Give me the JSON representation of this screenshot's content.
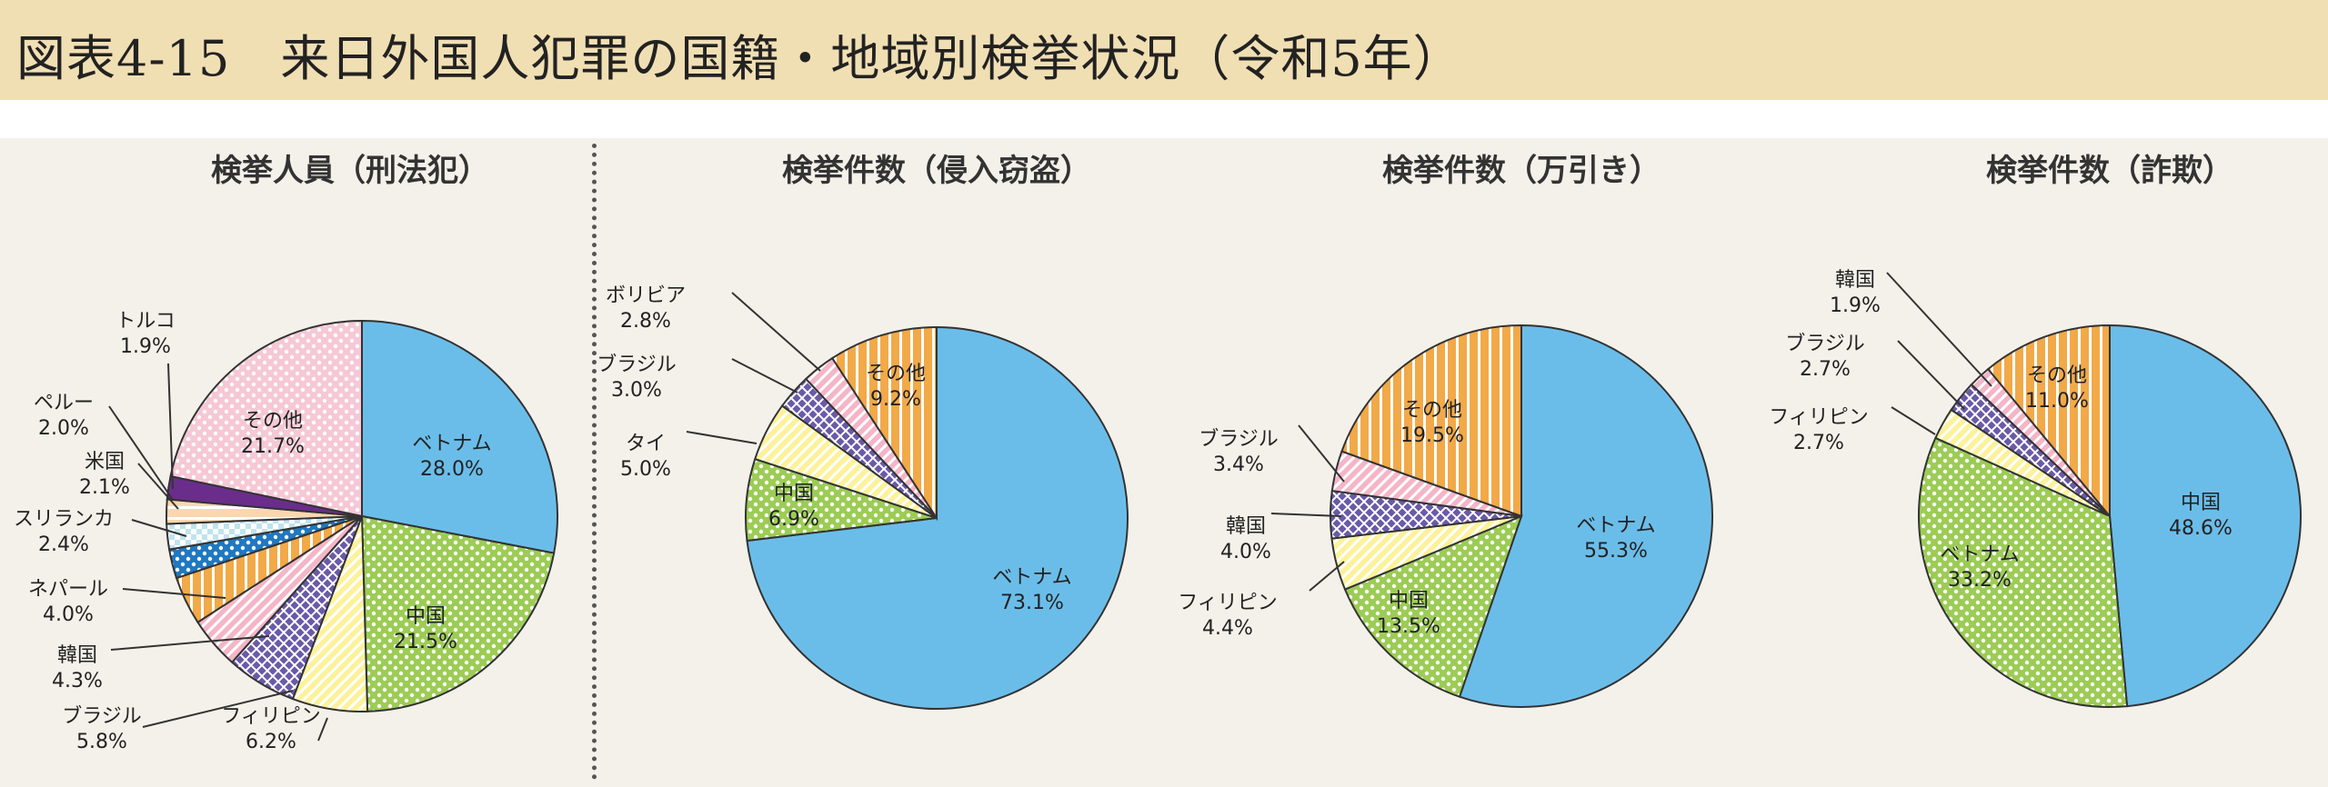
{
  "figure_title": "図表4-15　来日外国人犯罪の国籍・地域別検挙状況（令和5年）",
  "chart_data": [
    {
      "type": "pie",
      "title": "検挙人員（刑法犯）",
      "slices": [
        {
          "name": "ベトナム",
          "value": 28.0,
          "label": "28.0%",
          "color": "#6bbde9",
          "pattern": "none"
        },
        {
          "name": "中国",
          "value": 21.5,
          "label": "21.5%",
          "color": "#9ccc55",
          "pattern": "dots"
        },
        {
          "name": "フィリピン",
          "value": 6.2,
          "label": "6.2%",
          "color": "#fdf29a",
          "pattern": "diag"
        },
        {
          "name": "ブラジル",
          "value": 5.8,
          "label": "5.8%",
          "color": "#6a5aa8",
          "pattern": "cross"
        },
        {
          "name": "韓国",
          "value": 4.3,
          "label": "4.3%",
          "color": "#f5b5c8",
          "pattern": "diag"
        },
        {
          "name": "ネパール",
          "value": 4.0,
          "label": "4.0%",
          "color": "#f2a948",
          "pattern": "vstripe"
        },
        {
          "name": "スリランカ",
          "value": 2.4,
          "label": "2.4%",
          "color": "#1f78c1",
          "pattern": "dots"
        },
        {
          "name": "米国",
          "value": 2.1,
          "label": "2.1%",
          "color": "#bfe4ef",
          "pattern": "check"
        },
        {
          "name": "ペルー",
          "value": 2.0,
          "label": "2.0%",
          "color": "#fbd7b0",
          "pattern": "hstripe"
        },
        {
          "name": "トルコ",
          "value": 1.9,
          "label": "1.9%",
          "color": "#6b2d8c",
          "pattern": "none"
        },
        {
          "name": "その他",
          "value": 21.7,
          "label": "21.7%",
          "color": "#f6c8d6",
          "pattern": "dots"
        }
      ]
    },
    {
      "type": "pie",
      "title": "検挙件数（侵入窃盗）",
      "slices": [
        {
          "name": "ベトナム",
          "value": 73.1,
          "label": "73.1%",
          "color": "#6bbde9",
          "pattern": "none"
        },
        {
          "name": "中国",
          "value": 6.9,
          "label": "6.9%",
          "color": "#9ccc55",
          "pattern": "dots"
        },
        {
          "name": "タイ",
          "value": 5.0,
          "label": "5.0%",
          "color": "#fdf29a",
          "pattern": "diag"
        },
        {
          "name": "ブラジル",
          "value": 3.0,
          "label": "3.0%",
          "color": "#6a5aa8",
          "pattern": "cross"
        },
        {
          "name": "ボリビア",
          "value": 2.8,
          "label": "2.8%",
          "color": "#f5b5c8",
          "pattern": "diag"
        },
        {
          "name": "その他",
          "value": 9.2,
          "label": "9.2%",
          "color": "#f2a948",
          "pattern": "vstripe"
        }
      ]
    },
    {
      "type": "pie",
      "title": "検挙件数（万引き）",
      "slices": [
        {
          "name": "ベトナム",
          "value": 55.3,
          "label": "55.3%",
          "color": "#6bbde9",
          "pattern": "none"
        },
        {
          "name": "中国",
          "value": 13.5,
          "label": "13.5%",
          "color": "#9ccc55",
          "pattern": "dots"
        },
        {
          "name": "フィリピン",
          "value": 4.4,
          "label": "4.4%",
          "color": "#fdf29a",
          "pattern": "diag"
        },
        {
          "name": "韓国",
          "value": 4.0,
          "label": "4.0%",
          "color": "#6a5aa8",
          "pattern": "cross"
        },
        {
          "name": "ブラジル",
          "value": 3.4,
          "label": "3.4%",
          "color": "#f5b5c8",
          "pattern": "diag"
        },
        {
          "name": "その他",
          "value": 19.5,
          "label": "19.5%",
          "color": "#f2a948",
          "pattern": "vstripe"
        }
      ]
    },
    {
      "type": "pie",
      "title": "検挙件数（詐欺）",
      "slices": [
        {
          "name": "中国",
          "value": 48.6,
          "label": "48.6%",
          "color": "#6bbde9",
          "pattern": "none"
        },
        {
          "name": "ベトナム",
          "value": 33.2,
          "label": "33.2%",
          "color": "#9ccc55",
          "pattern": "dots"
        },
        {
          "name": "フィリピン",
          "value": 2.7,
          "label": "2.7%",
          "color": "#fdf29a",
          "pattern": "diag"
        },
        {
          "name": "ブラジル",
          "value": 2.7,
          "label": "2.7%",
          "color": "#6a5aa8",
          "pattern": "cross"
        },
        {
          "name": "韓国",
          "value": 1.9,
          "label": "1.9%",
          "color": "#f5b5c8",
          "pattern": "diag"
        },
        {
          "name": "その他",
          "value": 11.0,
          "label": "11.0%",
          "color": "#f2a948",
          "pattern": "vstripe"
        }
      ]
    }
  ]
}
